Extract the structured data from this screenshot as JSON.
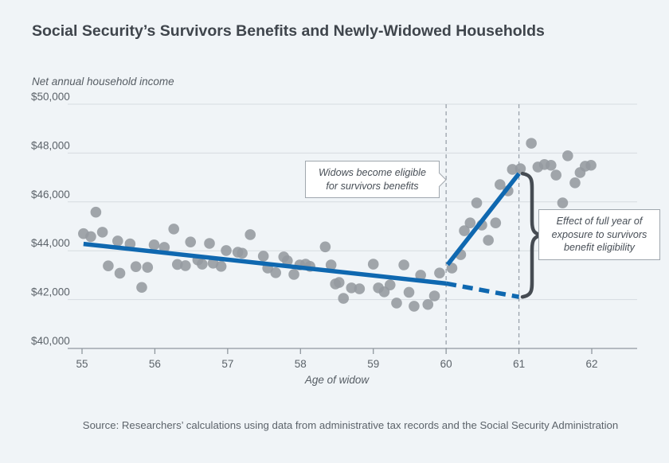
{
  "page": {
    "title": "Social Security’s Survivors Benefits and Newly-Widowed Households",
    "source": "Source: Researchers’ calculations using data from administrative tax records and the Social Security Administration"
  },
  "chart_data": {
    "type": "scatter",
    "title": "Social Security’s Survivors Benefits and Newly-Widowed Households",
    "ylabel": "Net annual household income",
    "xlabel": "Age of widow",
    "xlim": [
      54.8,
      62.6
    ],
    "ylim": [
      40000,
      50000
    ],
    "grid": true,
    "x_ticks": [
      55,
      56,
      57,
      58,
      59,
      60,
      61,
      62
    ],
    "y_ticks": [
      50000,
      48000,
      46000,
      44000,
      42000,
      40000
    ],
    "y_tick_labels": [
      "$50,000",
      "$48,000",
      "$46,000",
      "$44,000",
      "$42,000",
      "$40,000"
    ],
    "reference_ages": [
      60,
      61
    ],
    "annotations": [
      {
        "lines": [
          "Widows become eligible",
          "for survivors benefits"
        ],
        "points_to_age": 60
      },
      {
        "lines": [
          "Effect of full year of",
          "exposure to survivors",
          "benefit eligibility"
        ],
        "at_age": 61,
        "brace_from_income": 47160,
        "brace_to_income": 42110
      }
    ],
    "series": [
      {
        "name": "Mean net household income (binned scatter)",
        "type": "scatter",
        "points": [
          [
            55.02,
            44700
          ],
          [
            55.12,
            44580
          ],
          [
            55.19,
            45580
          ],
          [
            55.28,
            44760
          ],
          [
            55.36,
            43380
          ],
          [
            55.49,
            44400
          ],
          [
            55.52,
            43080
          ],
          [
            55.66,
            44280
          ],
          [
            55.74,
            43350
          ],
          [
            55.82,
            42500
          ],
          [
            55.9,
            43320
          ],
          [
            55.99,
            44240
          ],
          [
            56.13,
            44140
          ],
          [
            56.26,
            44890
          ],
          [
            56.31,
            43440
          ],
          [
            56.42,
            43390
          ],
          [
            56.49,
            44360
          ],
          [
            56.59,
            43620
          ],
          [
            56.65,
            43450
          ],
          [
            56.75,
            44300
          ],
          [
            56.8,
            43490
          ],
          [
            56.91,
            43360
          ],
          [
            56.98,
            44010
          ],
          [
            57.14,
            43940
          ],
          [
            57.2,
            43900
          ],
          [
            57.31,
            44660
          ],
          [
            57.49,
            43780
          ],
          [
            57.55,
            43290
          ],
          [
            57.66,
            43100
          ],
          [
            57.77,
            43750
          ],
          [
            57.82,
            43590
          ],
          [
            57.91,
            43030
          ],
          [
            57.99,
            43420
          ],
          [
            58.07,
            43450
          ],
          [
            58.13,
            43360
          ],
          [
            58.34,
            44160
          ],
          [
            58.42,
            43420
          ],
          [
            58.48,
            42640
          ],
          [
            58.53,
            42700
          ],
          [
            58.59,
            42050
          ],
          [
            58.7,
            42480
          ],
          [
            58.81,
            42440
          ],
          [
            59.0,
            43450
          ],
          [
            59.07,
            42480
          ],
          [
            59.15,
            42320
          ],
          [
            59.23,
            42600
          ],
          [
            59.32,
            41860
          ],
          [
            59.42,
            43420
          ],
          [
            59.49,
            42300
          ],
          [
            59.56,
            41730
          ],
          [
            59.65,
            43000
          ],
          [
            59.75,
            41800
          ],
          [
            59.84,
            42150
          ],
          [
            59.91,
            43090
          ],
          [
            60.08,
            43290
          ],
          [
            60.2,
            43840
          ],
          [
            60.25,
            44820
          ],
          [
            60.33,
            45140
          ],
          [
            60.42,
            45960
          ],
          [
            60.49,
            45050
          ],
          [
            60.58,
            44430
          ],
          [
            60.68,
            45140
          ],
          [
            60.74,
            46710
          ],
          [
            60.85,
            46450
          ],
          [
            60.91,
            47330
          ],
          [
            61.02,
            47360
          ],
          [
            61.17,
            48400
          ],
          [
            61.26,
            47430
          ],
          [
            61.35,
            47530
          ],
          [
            61.44,
            47500
          ],
          [
            61.51,
            47100
          ],
          [
            61.6,
            45960
          ],
          [
            61.67,
            47890
          ],
          [
            61.77,
            46780
          ],
          [
            61.84,
            47200
          ],
          [
            61.91,
            47460
          ],
          [
            61.99,
            47500
          ]
        ]
      },
      {
        "name": "Pre-eligibility trend",
        "type": "line",
        "points": [
          [
            55.02,
            44280
          ],
          [
            60,
            42660
          ]
        ]
      },
      {
        "name": "Post-eligibility trend",
        "type": "line",
        "points": [
          [
            60.02,
            43430
          ],
          [
            61,
            47160
          ]
        ]
      },
      {
        "name": "Counterfactual extrapolated trend",
        "type": "dashed-line",
        "points": [
          [
            60,
            42660
          ],
          [
            61,
            42110
          ]
        ]
      }
    ],
    "colors": {
      "accent_blue": "#0f68b0",
      "dot_gray": "#949a9f",
      "grid": "#d6dbe0",
      "axis": "#8f979e",
      "reference_dash": "#9aa2aa",
      "brace": "#464c53"
    }
  }
}
